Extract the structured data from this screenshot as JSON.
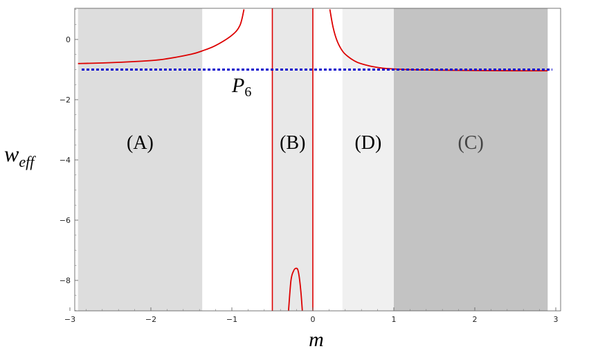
{
  "chart_data": {
    "type": "line",
    "title": "",
    "xlabel": "m",
    "ylabel": "w",
    "ylabel_subscript": "eff",
    "xlim": [
      -3,
      3
    ],
    "ylim": [
      -9,
      1
    ],
    "x_ticks": [
      -3,
      -2,
      -1,
      0,
      1,
      2,
      3
    ],
    "x_tick_labels": [
      "−3",
      "−2",
      "−1",
      "0",
      "1",
      "2",
      "3"
    ],
    "y_ticks": [
      0,
      -2,
      -4,
      -6,
      -8
    ],
    "y_tick_labels": [
      "0",
      "−2",
      "−4",
      "−6",
      "−8"
    ],
    "grid": false,
    "regions": [
      {
        "label": "(A)",
        "x_range": [
          -2.9,
          -1.366
        ],
        "color": "#dddddd",
        "label_color": "#000000"
      },
      {
        "label": "(B)",
        "x_range": [
          -0.5,
          0
        ],
        "color": "#e8e8e8",
        "label_color": "#000000"
      },
      {
        "label": "(D)",
        "x_range": [
          0.366,
          1
        ],
        "color": "#f0f0f0",
        "label_color": "#000000"
      },
      {
        "label": "(C)",
        "x_range": [
          1,
          2.9
        ],
        "color": "#c3c3c3",
        "label_color": "#444444"
      }
    ],
    "reference_line": {
      "label_base": "P",
      "label_sub": "6",
      "y": -1,
      "color": "#0000cc",
      "style": "dotted"
    },
    "vertical_lines": {
      "x": [
        -0.5,
        0
      ],
      "color": "#dd0000"
    },
    "series": [
      {
        "color": "#dd0000",
        "segments": [
          {
            "x": [
              -2.9,
              -2.5,
              -2.0,
              -1.8,
              -1.5,
              -1.366,
              -1.2,
              -1.0,
              -0.9,
              -0.85
            ],
            "y": [
              -0.8,
              -0.77,
              -0.7,
              -0.64,
              -0.49,
              -0.38,
              -0.2,
              0.14,
              0.47,
              1.0
            ]
          },
          {
            "x": [
              -0.3,
              -0.27,
              -0.24,
              -0.21,
              -0.18,
              -0.15,
              -0.13
            ],
            "y": [
              -9.0,
              -8.0,
              -7.7,
              -7.6,
              -7.7,
              -8.3,
              -9.0
            ]
          },
          {
            "x": [
              0.21,
              0.25,
              0.3,
              0.37,
              0.45,
              0.55,
              0.7,
              0.85,
              1.0,
              1.3,
              1.6,
              2.0,
              2.5,
              2.9
            ],
            "y": [
              1.0,
              0.4,
              -0.05,
              -0.4,
              -0.6,
              -0.76,
              -0.88,
              -0.95,
              -0.98,
              -1.01,
              -1.02,
              -1.03,
              -1.04,
              -1.04
            ]
          }
        ]
      }
    ]
  }
}
